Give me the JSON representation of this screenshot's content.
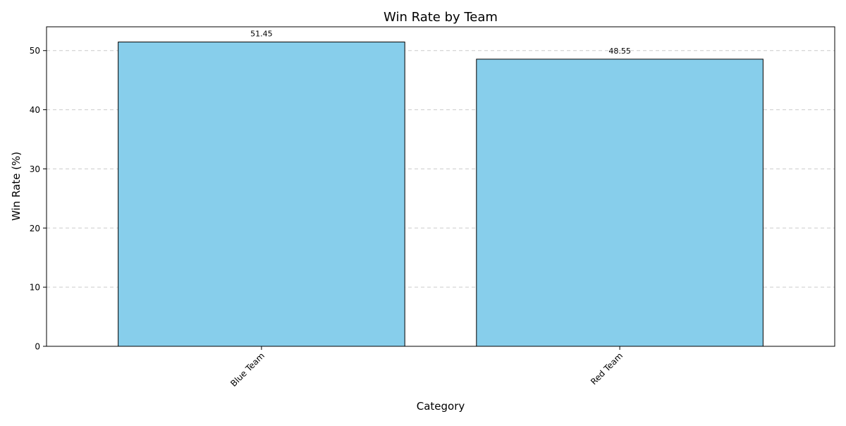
{
  "chart_data": {
    "type": "bar",
    "title": "Win Rate by Team",
    "xlabel": "Category",
    "ylabel": "Win Rate (%)",
    "categories": [
      "Blue Team",
      "Red Team"
    ],
    "values": [
      51.45,
      48.55
    ],
    "value_labels": [
      "51.45",
      "48.55"
    ],
    "yticks": [
      0,
      10,
      20,
      30,
      40,
      50
    ],
    "ylim": [
      0,
      54.0225
    ],
    "grid": {
      "y": true,
      "x": false,
      "style": "dashed"
    },
    "bar_color": "#87CEEB",
    "bar_edge_color": "#000000",
    "grid_color": "#cccccc",
    "legend": "none",
    "xtick_rotation": 45
  }
}
